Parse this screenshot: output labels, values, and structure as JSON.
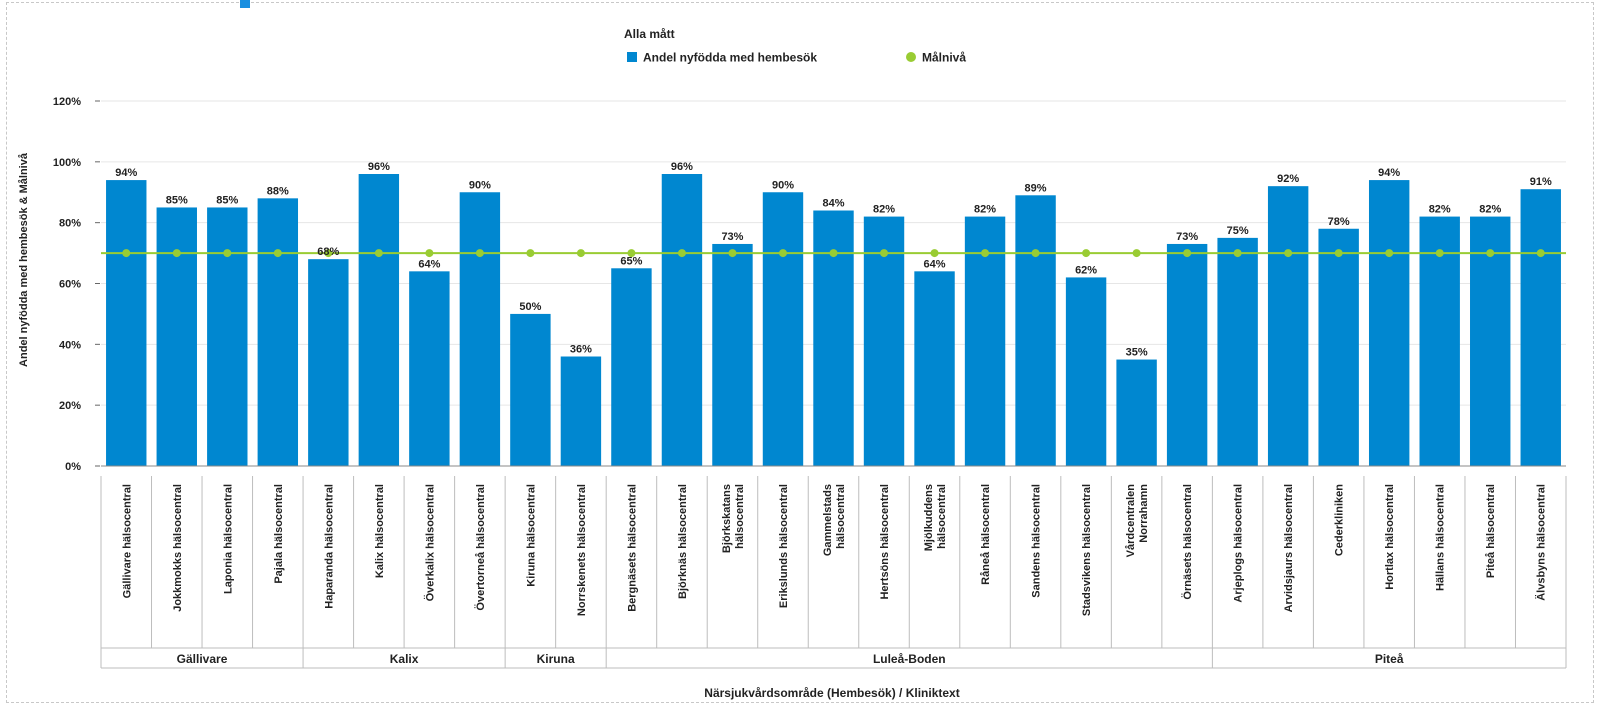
{
  "colors": {
    "bar": "#0087d0",
    "target": "#99cc33",
    "grid": "#e6e6e6",
    "axis": "#bdbdbd",
    "text": "#222222"
  },
  "chart_data": {
    "type": "bar",
    "legend": {
      "title": "Alla mått",
      "position": "top-center",
      "entries": [
        {
          "label": "Andel nyfödda med hembesök",
          "marker": "square",
          "color": "#0087d0"
        },
        {
          "label": "Målnivå",
          "marker": "circle",
          "color": "#99cc33"
        }
      ]
    },
    "ylabel": "Andel nyfödda med hembesök & Målnivå",
    "xlabel": "Närsjukvårdsområde (Hembesök) / Kliniktext",
    "ylim": [
      0,
      120
    ],
    "yticks": [
      0,
      20,
      40,
      60,
      80,
      100,
      120
    ],
    "ytick_labels": [
      "0%",
      "20%",
      "40%",
      "60%",
      "80%",
      "100%",
      "120%"
    ],
    "grid": true,
    "target_value": 70,
    "groups": [
      {
        "label": "Gällivare",
        "count": 4
      },
      {
        "label": "Kalix",
        "count": 4
      },
      {
        "label": "Kiruna",
        "count": 2
      },
      {
        "label": "Luleå-Boden",
        "count": 12
      },
      {
        "label": "Piteå",
        "count": 7
      }
    ],
    "categories": [
      [
        "Gällivare hälsocentral"
      ],
      [
        "Jokkmokks hälsocentral"
      ],
      [
        "Laponia hälsocentral"
      ],
      [
        "Pajala hälsocentral"
      ],
      [
        "Haparanda hälsocentral"
      ],
      [
        "Kalix hälsocentral"
      ],
      [
        "Överkalix hälsocentral"
      ],
      [
        "Övertorneå hälsocentral"
      ],
      [
        "Kiruna hälsocentral"
      ],
      [
        "Norrskenets hälsocentral"
      ],
      [
        "Bergnäsets hälsocentral"
      ],
      [
        "Björknäs hälsocentral"
      ],
      [
        "Björkskatans",
        "hälsocentral"
      ],
      [
        "Erikslunds hälsocentral"
      ],
      [
        "Gammelstads",
        "hälsocentral"
      ],
      [
        "Hertsöns hälsocentral"
      ],
      [
        "Mjölkuddens",
        "hälsocentral"
      ],
      [
        "Råneå hälsocentral"
      ],
      [
        "Sandens hälsocentral"
      ],
      [
        "Stadsvikens hälsocentral"
      ],
      [
        "Vårdcentralen",
        "Norrahamn"
      ],
      [
        "Örnäsets hälsocentral"
      ],
      [
        "Arjeplogs hälsocentral"
      ],
      [
        "Arvidsjaurs hälsocentral"
      ],
      [
        "Cederkliniken"
      ],
      [
        "Hortlax hälsocentral"
      ],
      [
        "Hällans hälsocentral"
      ],
      [
        "Piteå hälsocentral"
      ],
      [
        "Älvsbyns hälsocentral"
      ]
    ],
    "series": [
      {
        "name": "Andel nyfödda med hembesök",
        "values": [
          94,
          85,
          85,
          88,
          68,
          96,
          64,
          90,
          50,
          36,
          65,
          96,
          73,
          90,
          84,
          82,
          64,
          82,
          89,
          62,
          35,
          73,
          75,
          92,
          78,
          94,
          82,
          82,
          91
        ],
        "value_labels": [
          "94%",
          "85%",
          "85%",
          "88%",
          "68%",
          "96%",
          "64%",
          "90%",
          "50%",
          "36%",
          "65%",
          "96%",
          "73%",
          "90%",
          "84%",
          "82%",
          "64%",
          "82%",
          "89%",
          "62%",
          "35%",
          "73%",
          "75%",
          "92%",
          "78%",
          "94%",
          "82%",
          "82%",
          "91%"
        ]
      },
      {
        "name": "Målnivå",
        "values": [
          70,
          70,
          70,
          70,
          70,
          70,
          70,
          70,
          70,
          70,
          70,
          70,
          70,
          70,
          70,
          70,
          70,
          70,
          70,
          70,
          70,
          70,
          70,
          70,
          70,
          70,
          70,
          70,
          70
        ]
      }
    ]
  }
}
